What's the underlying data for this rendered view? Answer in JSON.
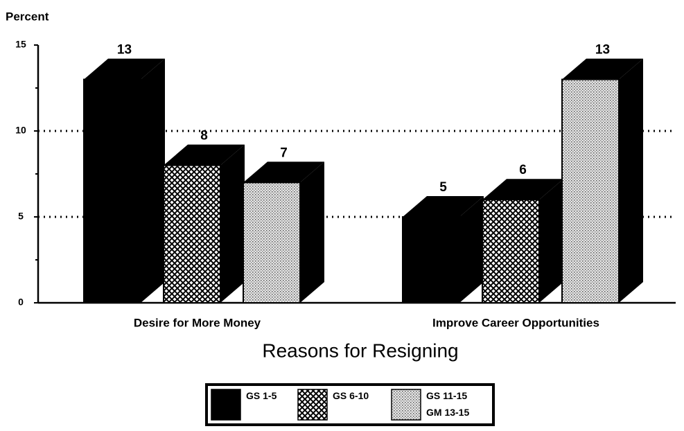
{
  "chart_data": {
    "type": "bar3d",
    "y_axis_label": "Percent",
    "x_axis_label": "Reasons for Resigning",
    "categories": [
      "Desire for More Money",
      "Improve Career Opportunities"
    ],
    "series": [
      {
        "name": "GS 1-5",
        "color": "#000000",
        "pattern": "solid",
        "values": [
          13,
          5
        ]
      },
      {
        "name": "GS 6-10",
        "color": "#000000",
        "pattern": "crosshatch",
        "values": [
          8,
          6
        ]
      },
      {
        "name": "GS 11-15\nGM 13-15",
        "color": "#000000",
        "pattern": "dots",
        "values": [
          7,
          13
        ]
      }
    ],
    "ylim": [
      0,
      15
    ],
    "yticks": [
      0,
      5,
      10,
      15
    ],
    "minor_yticks": [
      2.5,
      7.5,
      12.5
    ],
    "grid": true,
    "legend": "bottom"
  }
}
